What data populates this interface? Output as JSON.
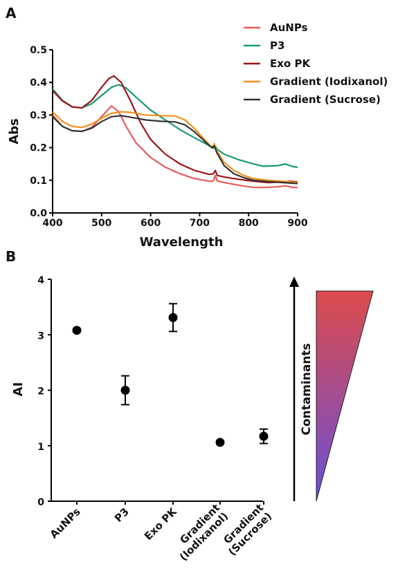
{
  "chart_data": [
    {
      "panel": "A",
      "type": "line",
      "xlabel": "Wavelength",
      "ylabel": "Abs",
      "xlim": [
        400,
        900
      ],
      "ylim": [
        0.0,
        0.5
      ],
      "x_ticks": [
        "400",
        "500",
        "600",
        "700",
        "800",
        "900"
      ],
      "y_ticks": [
        "0.0",
        "0.1",
        "0.2",
        "0.3",
        "0.4",
        "0.5"
      ],
      "legend_position": "top-right",
      "grid": false,
      "series": [
        {
          "name": "AuNPs",
          "color": "#e85a5a",
          "points": [
            [
              400,
              0.3
            ],
            [
              420,
              0.265
            ],
            [
              440,
              0.252
            ],
            [
              460,
              0.25
            ],
            [
              480,
              0.262
            ],
            [
              500,
              0.295
            ],
            [
              520,
              0.328
            ],
            [
              535,
              0.31
            ],
            [
              550,
              0.265
            ],
            [
              570,
              0.215
            ],
            [
              600,
              0.17
            ],
            [
              630,
              0.14
            ],
            [
              660,
              0.12
            ],
            [
              690,
              0.105
            ],
            [
              720,
              0.097
            ],
            [
              728,
              0.098
            ],
            [
              732,
              0.115
            ],
            [
              736,
              0.098
            ],
            [
              750,
              0.093
            ],
            [
              780,
              0.085
            ],
            [
              810,
              0.078
            ],
            [
              830,
              0.078
            ],
            [
              860,
              0.08
            ],
            [
              875,
              0.083
            ],
            [
              890,
              0.078
            ],
            [
              900,
              0.078
            ]
          ]
        },
        {
          "name": "P3",
          "color": "#1a9a6a",
          "points": [
            [
              400,
              0.38
            ],
            [
              420,
              0.345
            ],
            [
              440,
              0.325
            ],
            [
              460,
              0.322
            ],
            [
              480,
              0.335
            ],
            [
              500,
              0.36
            ],
            [
              520,
              0.385
            ],
            [
              535,
              0.393
            ],
            [
              550,
              0.383
            ],
            [
              570,
              0.355
            ],
            [
              600,
              0.315
            ],
            [
              630,
              0.285
            ],
            [
              660,
              0.255
            ],
            [
              690,
              0.23
            ],
            [
              715,
              0.21
            ],
            [
              728,
              0.198
            ],
            [
              732,
              0.205
            ],
            [
              736,
              0.195
            ],
            [
              750,
              0.18
            ],
            [
              780,
              0.163
            ],
            [
              810,
              0.15
            ],
            [
              830,
              0.143
            ],
            [
              860,
              0.145
            ],
            [
              875,
              0.15
            ],
            [
              890,
              0.142
            ],
            [
              900,
              0.14
            ]
          ]
        },
        {
          "name": "Exo PK",
          "color": "#9b1515",
          "points": [
            [
              400,
              0.375
            ],
            [
              420,
              0.343
            ],
            [
              440,
              0.325
            ],
            [
              460,
              0.322
            ],
            [
              480,
              0.345
            ],
            [
              500,
              0.385
            ],
            [
              515,
              0.412
            ],
            [
              525,
              0.42
            ],
            [
              540,
              0.4
            ],
            [
              560,
              0.34
            ],
            [
              580,
              0.275
            ],
            [
              600,
              0.225
            ],
            [
              630,
              0.18
            ],
            [
              660,
              0.15
            ],
            [
              690,
              0.13
            ],
            [
              720,
              0.118
            ],
            [
              728,
              0.12
            ],
            [
              732,
              0.13
            ],
            [
              736,
              0.115
            ],
            [
              750,
              0.11
            ],
            [
              780,
              0.103
            ],
            [
              810,
              0.097
            ],
            [
              840,
              0.093
            ],
            [
              870,
              0.095
            ],
            [
              885,
              0.097
            ],
            [
              900,
              0.095
            ]
          ]
        },
        {
          "name": "Gradient (Iodixanol)",
          "color": "#f0901a",
          "points": [
            [
              400,
              0.31
            ],
            [
              420,
              0.28
            ],
            [
              440,
              0.265
            ],
            [
              460,
              0.262
            ],
            [
              480,
              0.272
            ],
            [
              500,
              0.29
            ],
            [
              520,
              0.305
            ],
            [
              540,
              0.31
            ],
            [
              560,
              0.308
            ],
            [
              590,
              0.3
            ],
            [
              620,
              0.298
            ],
            [
              650,
              0.297
            ],
            [
              670,
              0.285
            ],
            [
              690,
              0.258
            ],
            [
              710,
              0.225
            ],
            [
              725,
              0.2
            ],
            [
              730,
              0.212
            ],
            [
              735,
              0.19
            ],
            [
              750,
              0.155
            ],
            [
              770,
              0.13
            ],
            [
              790,
              0.115
            ],
            [
              810,
              0.105
            ],
            [
              840,
              0.1
            ],
            [
              870,
              0.097
            ],
            [
              900,
              0.093
            ]
          ]
        },
        {
          "name": "Gradient (Sucrose)",
          "color": "#333333",
          "points": [
            [
              400,
              0.295
            ],
            [
              420,
              0.265
            ],
            [
              440,
              0.252
            ],
            [
              460,
              0.25
            ],
            [
              480,
              0.26
            ],
            [
              500,
              0.28
            ],
            [
              520,
              0.295
            ],
            [
              540,
              0.298
            ],
            [
              560,
              0.293
            ],
            [
              590,
              0.285
            ],
            [
              620,
              0.281
            ],
            [
              650,
              0.279
            ],
            [
              670,
              0.27
            ],
            [
              690,
              0.248
            ],
            [
              710,
              0.22
            ],
            [
              725,
              0.2
            ],
            [
              730,
              0.205
            ],
            [
              735,
              0.185
            ],
            [
              750,
              0.145
            ],
            [
              770,
              0.12
            ],
            [
              790,
              0.108
            ],
            [
              810,
              0.1
            ],
            [
              840,
              0.096
            ],
            [
              870,
              0.093
            ],
            [
              900,
              0.09
            ]
          ]
        }
      ]
    },
    {
      "panel": "B",
      "type": "scatter",
      "ylabel": "AI",
      "ylim": [
        0,
        4
      ],
      "y_ticks": [
        "0",
        "1",
        "2",
        "3",
        "4"
      ],
      "categories": [
        "AuNPs",
        "P3",
        "Exo PK",
        "Gradient\n(Iodixanol)",
        "Gradient\n(Sucrose)"
      ],
      "values": [
        3.08,
        2.0,
        3.31,
        1.06,
        1.17
      ],
      "errors": [
        0.04,
        0.26,
        0.25,
        0.03,
        0.13
      ],
      "side_annotation": "Contaminants",
      "gradient_colors": [
        "#dd4b4b",
        "#6a4fd8"
      ]
    }
  ]
}
